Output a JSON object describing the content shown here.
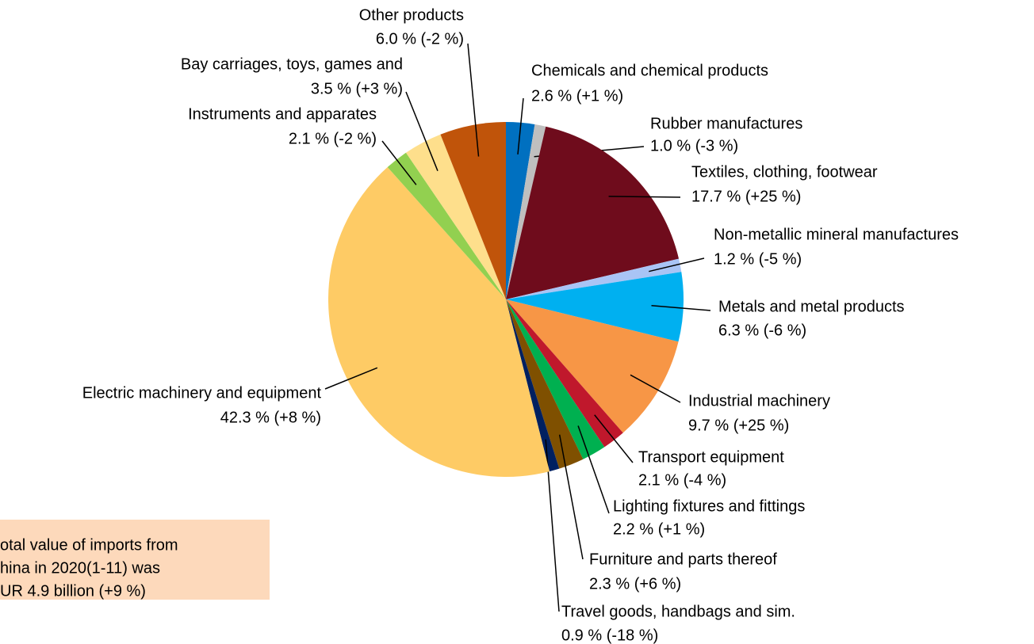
{
  "chart_data": {
    "type": "pie",
    "categories": [
      "Chemicals and chemical products",
      "Rubber manufactures",
      "Textiles, clothing, footwear",
      "Non-metallic mineral manufactures",
      "Metals and metal products",
      "Industrial machinery",
      "Transport equipment",
      "Lighting fixtures and fittings",
      "Furniture and parts thereof",
      "Travel goods, handbags and sim.",
      "Electric machinery and equipment",
      "Instruments and apparates",
      "Bay carriages, toys, games and",
      "Other products"
    ],
    "values": [
      2.6,
      1.0,
      17.7,
      1.2,
      6.3,
      9.7,
      2.1,
      2.2,
      2.3,
      0.9,
      42.3,
      2.1,
      3.5,
      6.0
    ],
    "value_labels": [
      "2.6 % (+1 %)",
      "1.0 % (-3 %)",
      "17.7 % (+25 %)",
      "1.2 % (-5 %)",
      "6.3 % (-6 %)",
      "9.7 % (+25 %)",
      "2.1 % (-4 %)",
      "2.2 % (+1 %)",
      "2.3 % (+6 %)",
      "0.9 % (-18 %)",
      "42.3 % (+8 %)",
      "2.1 % (-2 %)",
      "3.5 % (+3 %)",
      "6.0 % (-2 %)"
    ],
    "colors": [
      "#0070c0",
      "#bfbfbf",
      "#6f0c1c",
      "#a9c4f5",
      "#00b0f0",
      "#f79646",
      "#c0182c",
      "#00b050",
      "#7f5000",
      "#002060",
      "#fecb65",
      "#92d050",
      "#fedf8c",
      "#c0540a"
    ],
    "annotation": [
      "otal value of imports from",
      "hina in 2020(1-11) was",
      "UR 4.9 billion (+9 %)"
    ]
  }
}
